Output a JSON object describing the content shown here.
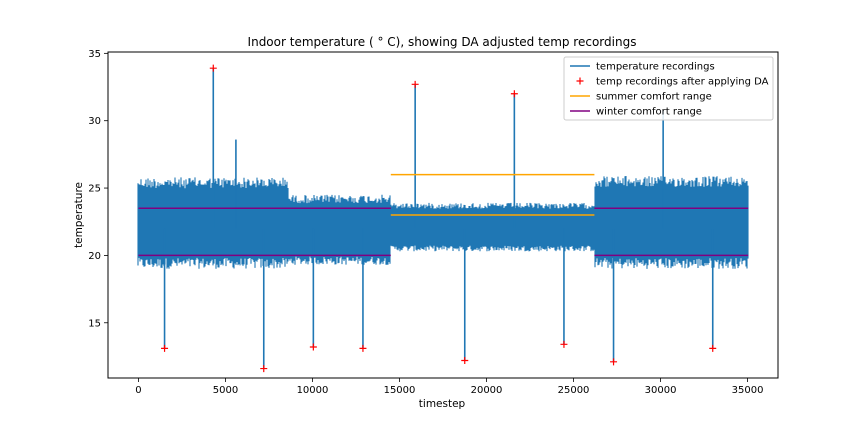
{
  "chart_data": {
    "type": "line",
    "title": "Indoor temperature ( ° C), showing DA adjusted temp recordings",
    "xlabel": "timestep",
    "ylabel": "temperature",
    "xlim": [
      -1750,
      36750
    ],
    "ylim": [
      10.9,
      35.1
    ],
    "xticks": [
      0,
      5000,
      10000,
      15000,
      20000,
      25000,
      30000,
      35000
    ],
    "yticks": [
      15,
      20,
      25,
      30,
      35
    ],
    "grid": false,
    "legend_position": "top-right",
    "colors": {
      "temperature": "#1f77b4",
      "da": "#ff0000",
      "summer": "#ffa500",
      "winter": "#800080"
    },
    "series": [
      {
        "name": "temperature recordings",
        "kind": "noisy-line",
        "x_range": [
          0,
          35040
        ],
        "bands": [
          {
            "x": [
              0,
              8600
            ],
            "low": 19.0,
            "high": 25.8
          },
          {
            "x": [
              8600,
              14500
            ],
            "low": 19.3,
            "high": 24.5
          },
          {
            "x": [
              14500,
              26200
            ],
            "low": 20.3,
            "high": 23.9
          },
          {
            "x": [
              26200,
              35040
            ],
            "low": 19.0,
            "high": 25.9
          }
        ],
        "spikes": [
          {
            "x": 1500,
            "y": 13.1
          },
          {
            "x": 4300,
            "y": 33.9
          },
          {
            "x": 5600,
            "y": 28.6
          },
          {
            "x": 7200,
            "y": 11.6
          },
          {
            "x": 10050,
            "y": 13.2
          },
          {
            "x": 12900,
            "y": 13.1
          },
          {
            "x": 15900,
            "y": 32.7
          },
          {
            "x": 18750,
            "y": 12.2
          },
          {
            "x": 21600,
            "y": 32.0
          },
          {
            "x": 24450,
            "y": 13.4
          },
          {
            "x": 27300,
            "y": 12.1
          },
          {
            "x": 30150,
            "y": 30.8
          },
          {
            "x": 33000,
            "y": 13.1
          }
        ]
      },
      {
        "name": "temp recordings after applying DA",
        "kind": "markers",
        "points": [
          {
            "x": 1500,
            "y": 13.1
          },
          {
            "x": 4300,
            "y": 33.9
          },
          {
            "x": 7200,
            "y": 11.6
          },
          {
            "x": 10050,
            "y": 13.2
          },
          {
            "x": 12900,
            "y": 13.1
          },
          {
            "x": 15900,
            "y": 32.7
          },
          {
            "x": 18750,
            "y": 12.2
          },
          {
            "x": 21600,
            "y": 32.0
          },
          {
            "x": 24450,
            "y": 13.4
          },
          {
            "x": 27300,
            "y": 12.1
          },
          {
            "x": 33000,
            "y": 13.1
          }
        ]
      },
      {
        "name": "summer comfort range",
        "kind": "segments",
        "segments": [
          {
            "x": [
              14500,
              26200
            ],
            "y": 26.0
          },
          {
            "x": [
              14500,
              26200
            ],
            "y": 23.0
          }
        ]
      },
      {
        "name": "winter comfort range",
        "kind": "segments",
        "segments": [
          {
            "x": [
              0,
              14500
            ],
            "y": 20.0
          },
          {
            "x": [
              0,
              14500
            ],
            "y": 23.5
          },
          {
            "x": [
              26200,
              35040
            ],
            "y": 20.0
          },
          {
            "x": [
              26200,
              35040
            ],
            "y": 23.5
          }
        ]
      }
    ]
  }
}
